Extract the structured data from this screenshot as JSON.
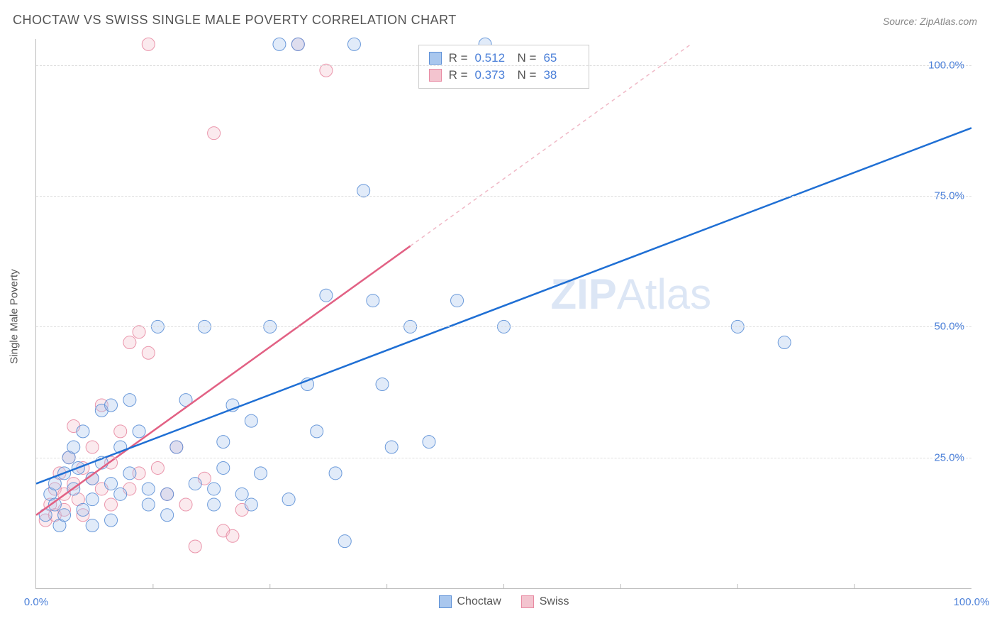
{
  "title": "CHOCTAW VS SWISS SINGLE MALE POVERTY CORRELATION CHART",
  "source": "Source: ZipAtlas.com",
  "y_axis_title": "Single Male Poverty",
  "watermark": {
    "bold": "ZIP",
    "rest": "Atlas"
  },
  "chart": {
    "type": "scatter",
    "xlim": [
      0,
      100
    ],
    "ylim": [
      0,
      105
    ],
    "x_ticks": [
      0,
      100
    ],
    "x_tick_labels": [
      "0.0%",
      "100.0%"
    ],
    "y_ticks": [
      25,
      50,
      75,
      100
    ],
    "y_tick_labels": [
      "25.0%",
      "50.0%",
      "75.0%",
      "100.0%"
    ],
    "grid_color": "#dddddd",
    "background_color": "#ffffff",
    "axis_color": "#bbbbbb",
    "tick_label_color": "#4a7fd8",
    "marker_radius": 9,
    "marker_fill_opacity": 0.35,
    "marker_stroke_opacity": 0.9,
    "marker_stroke_width": 1,
    "trend_line_width": 2.5,
    "series": [
      {
        "name": "Choctaw",
        "color_fill": "#a9c7ee",
        "color_stroke": "#5b8fd6",
        "trend_color": "#1f6fd4",
        "trend_dash_color": "#1f6fd4",
        "R": "0.512",
        "N": "65",
        "trend": {
          "x1": 0,
          "y1": 20,
          "x2": 100,
          "y2": 88,
          "solid_until_x": 100
        },
        "points": [
          [
            1,
            14
          ],
          [
            1.5,
            18
          ],
          [
            2,
            20
          ],
          [
            2,
            16
          ],
          [
            2.5,
            12
          ],
          [
            3,
            22
          ],
          [
            3,
            14
          ],
          [
            3.5,
            25
          ],
          [
            4,
            19
          ],
          [
            4,
            27
          ],
          [
            4.5,
            23
          ],
          [
            5,
            15
          ],
          [
            5,
            30
          ],
          [
            6,
            21
          ],
          [
            6,
            17
          ],
          [
            7,
            34
          ],
          [
            7,
            24
          ],
          [
            8,
            20
          ],
          [
            8,
            35
          ],
          [
            9,
            27
          ],
          [
            9,
            18
          ],
          [
            10,
            36
          ],
          [
            10,
            22
          ],
          [
            11,
            30
          ],
          [
            12,
            19
          ],
          [
            12,
            16
          ],
          [
            13,
            50
          ],
          [
            14,
            18
          ],
          [
            15,
            27
          ],
          [
            16,
            36
          ],
          [
            17,
            20
          ],
          [
            18,
            50
          ],
          [
            19,
            16
          ],
          [
            20,
            28
          ],
          [
            20,
            23
          ],
          [
            21,
            35
          ],
          [
            22,
            18
          ],
          [
            23,
            32
          ],
          [
            24,
            22
          ],
          [
            25,
            50
          ],
          [
            26,
            104
          ],
          [
            27,
            17
          ],
          [
            28,
            104
          ],
          [
            29,
            39
          ],
          [
            30,
            30
          ],
          [
            31,
            56
          ],
          [
            32,
            22
          ],
          [
            33,
            9
          ],
          [
            34,
            104
          ],
          [
            35,
            76
          ],
          [
            36,
            55
          ],
          [
            37,
            39
          ],
          [
            38,
            27
          ],
          [
            40,
            50
          ],
          [
            42,
            28
          ],
          [
            45,
            55
          ],
          [
            48,
            104
          ],
          [
            50,
            50
          ],
          [
            75,
            50
          ],
          [
            80,
            47
          ],
          [
            6,
            12
          ],
          [
            8,
            13
          ],
          [
            14,
            14
          ],
          [
            19,
            19
          ],
          [
            23,
            16
          ]
        ]
      },
      {
        "name": "Swiss",
        "color_fill": "#f3c4cf",
        "color_stroke": "#e889a2",
        "trend_color": "#e26184",
        "trend_dash_color": "#f0b8c6",
        "R": "0.373",
        "N": "38",
        "trend": {
          "x1": 0,
          "y1": 14,
          "x2": 70,
          "y2": 104,
          "solid_until_x": 40
        },
        "points": [
          [
            1,
            13
          ],
          [
            1.5,
            16
          ],
          [
            2,
            14
          ],
          [
            2,
            19
          ],
          [
            2.5,
            22
          ],
          [
            3,
            15
          ],
          [
            3,
            18
          ],
          [
            3.5,
            25
          ],
          [
            4,
            20
          ],
          [
            4,
            31
          ],
          [
            4.5,
            17
          ],
          [
            5,
            23
          ],
          [
            5,
            14
          ],
          [
            6,
            27
          ],
          [
            6,
            21
          ],
          [
            7,
            35
          ],
          [
            7,
            19
          ],
          [
            8,
            24
          ],
          [
            8,
            16
          ],
          [
            9,
            30
          ],
          [
            10,
            19
          ],
          [
            10,
            47
          ],
          [
            11,
            22
          ],
          [
            11,
            49
          ],
          [
            12,
            45
          ],
          [
            12,
            104
          ],
          [
            13,
            23
          ],
          [
            14,
            18
          ],
          [
            15,
            27
          ],
          [
            16,
            16
          ],
          [
            17,
            8
          ],
          [
            18,
            21
          ],
          [
            19,
            87
          ],
          [
            20,
            11
          ],
          [
            21,
            10
          ],
          [
            22,
            15
          ],
          [
            28,
            104
          ],
          [
            31,
            99
          ]
        ]
      }
    ]
  },
  "top_legend": [
    {
      "series_idx": 0,
      "R_label": "R =",
      "N_label": "N ="
    },
    {
      "series_idx": 1,
      "R_label": "R =",
      "N_label": "N ="
    }
  ],
  "bottom_legend_label_0": "Choctaw",
  "bottom_legend_label_1": "Swiss"
}
